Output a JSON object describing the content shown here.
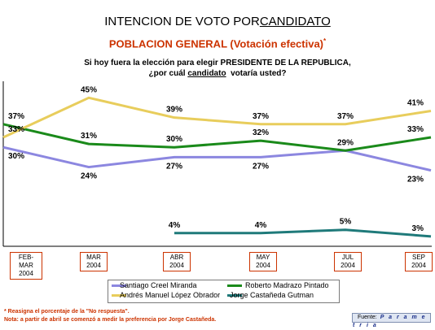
{
  "title_prefix": "INTENCION DE VOTO POR",
  "title_underlined": "CANDIDATO",
  "subtitle": "POBLACION GENERAL (Votación efectiva)",
  "subtitle_mark": "*",
  "question_line1": "Si hoy fuera la elección para elegir PRESIDENTE DE LA REPUBLICA,",
  "question_line2_before": "¿por cuál ",
  "question_line2_underlined": "candidato",
  "question_line2_after": "  votaría usted?",
  "footnote_1": "* Reasigna el porcentaje de la \"No respuesta\".",
  "footnote_2": "Nota: a partir de abril se comenzó a medir la preferencia por Jorge Castañeda.",
  "source_label": "Fuente:",
  "source_name": "P a r a m e t r i a",
  "chart_data": {
    "type": "line",
    "categories": [
      "FEB- MAR 2004",
      "MAR 2004",
      "ABR 2004",
      "MAY 2004",
      "JUL 2004",
      "SEP 2004"
    ],
    "ylim": [
      0,
      50
    ],
    "grid": false,
    "legend_position": "bottom",
    "series": [
      {
        "name": "Santiago Creel Miranda",
        "color": "#8c87e0",
        "values": [
          30,
          24,
          27,
          27,
          29,
          23
        ],
        "labels": [
          "30%",
          "24%",
          "27%",
          "27%",
          "",
          "23%"
        ]
      },
      {
        "name": "Roberto Madrazo Pintado",
        "color": "#1a8a1a",
        "values": [
          37,
          31,
          30,
          32,
          29,
          33
        ],
        "labels": [
          "37%",
          "31%",
          "30%",
          "32%",
          "29%",
          "33%"
        ]
      },
      {
        "name": "Andrés Manuel López Obrador",
        "color": "#e8cd5c",
        "values": [
          33,
          45,
          39,
          37,
          37,
          41
        ],
        "labels": [
          "33%",
          "45%",
          "39%",
          "37%",
          "37%",
          "41%"
        ]
      },
      {
        "name": "Jorge Castañeda Gutman",
        "color": "#1f7a7a",
        "values": [
          null,
          null,
          4,
          4,
          5,
          3
        ],
        "labels": [
          "",
          "",
          "4%",
          "4%",
          "5%",
          "3%"
        ]
      }
    ]
  }
}
